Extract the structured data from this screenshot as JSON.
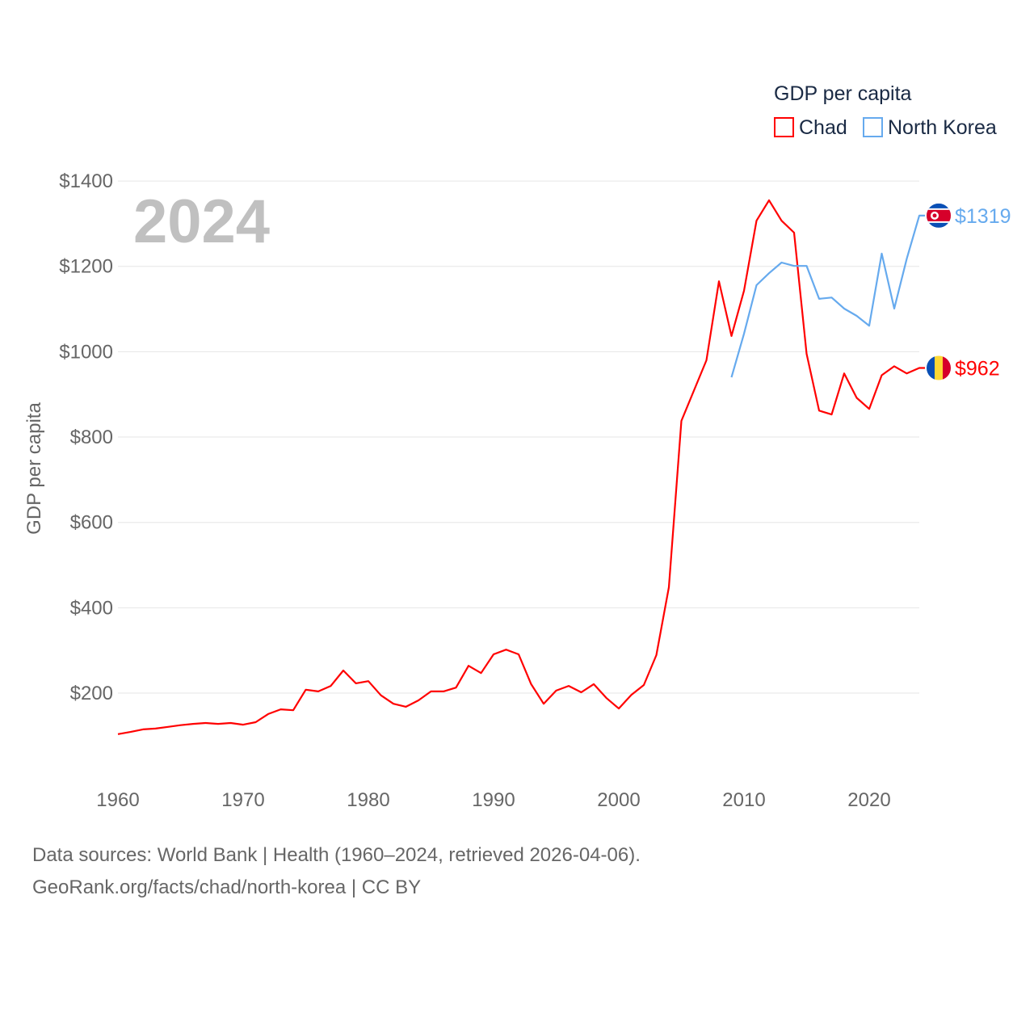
{
  "chart_data": {
    "type": "line",
    "title": "GDP per capita",
    "year_label": "2024",
    "ylabel": "GDP per capita",
    "xlabel": "",
    "xlim": [
      1960,
      2024
    ],
    "ylim": [
      0,
      1400
    ],
    "x_ticks": [
      1960,
      1970,
      1980,
      1990,
      2000,
      2010,
      2020
    ],
    "y_ticks": [
      200,
      400,
      600,
      800,
      1000,
      1200,
      1400
    ],
    "y_tick_labels": [
      "$200",
      "$400",
      "$600",
      "$800",
      "$1000",
      "$1200",
      "$1400"
    ],
    "grid": true,
    "legend_position": "top-right",
    "series": [
      {
        "name": "Chad",
        "color": "#ff0000",
        "end_label": "$962",
        "flag": "chad-flag",
        "x": [
          1960,
          1961,
          1962,
          1963,
          1964,
          1965,
          1966,
          1967,
          1968,
          1969,
          1970,
          1971,
          1972,
          1973,
          1974,
          1975,
          1976,
          1977,
          1978,
          1979,
          1980,
          1981,
          1982,
          1983,
          1984,
          1985,
          1986,
          1987,
          1988,
          1989,
          1990,
          1991,
          1992,
          1993,
          1994,
          1995,
          1996,
          1997,
          1998,
          1999,
          2000,
          2001,
          2002,
          2003,
          2004,
          2005,
          2006,
          2007,
          2008,
          2009,
          2010,
          2011,
          2012,
          2013,
          2014,
          2015,
          2016,
          2017,
          2018,
          2019,
          2020,
          2021,
          2022,
          2023,
          2024
        ],
        "values": [
          104,
          109,
          115,
          117,
          121,
          125,
          128,
          130,
          128,
          130,
          126,
          132,
          151,
          162,
          160,
          208,
          204,
          217,
          253,
          223,
          228,
          195,
          175,
          168,
          183,
          204,
          204,
          213,
          264,
          247,
          291,
          302,
          291,
          221,
          175,
          206,
          217,
          202,
          221,
          189,
          164,
          196,
          219,
          289,
          448,
          838,
          909,
          980,
          1165,
          1037,
          1143,
          1307,
          1355,
          1307,
          1279,
          995,
          862,
          853,
          949,
          892,
          866,
          945,
          966,
          949,
          962
        ]
      },
      {
        "name": "North Korea",
        "color": "#66aaee",
        "end_label": "$1319",
        "flag": "north-korea-flag",
        "x": [
          2009,
          2010,
          2011,
          2012,
          2013,
          2014,
          2015,
          2016,
          2017,
          2018,
          2019,
          2020,
          2021,
          2022,
          2023,
          2024
        ],
        "values": [
          940,
          1042,
          1156,
          1184,
          1209,
          1201,
          1201,
          1124,
          1127,
          1101,
          1084,
          1061,
          1230,
          1101,
          1218,
          1319
        ]
      }
    ]
  },
  "footer": {
    "line1": "Data sources: World Bank | Health (1960–2024, retrieved 2026-04-06).",
    "line2": "GeoRank.org/facts/chad/north-korea | CC BY"
  }
}
